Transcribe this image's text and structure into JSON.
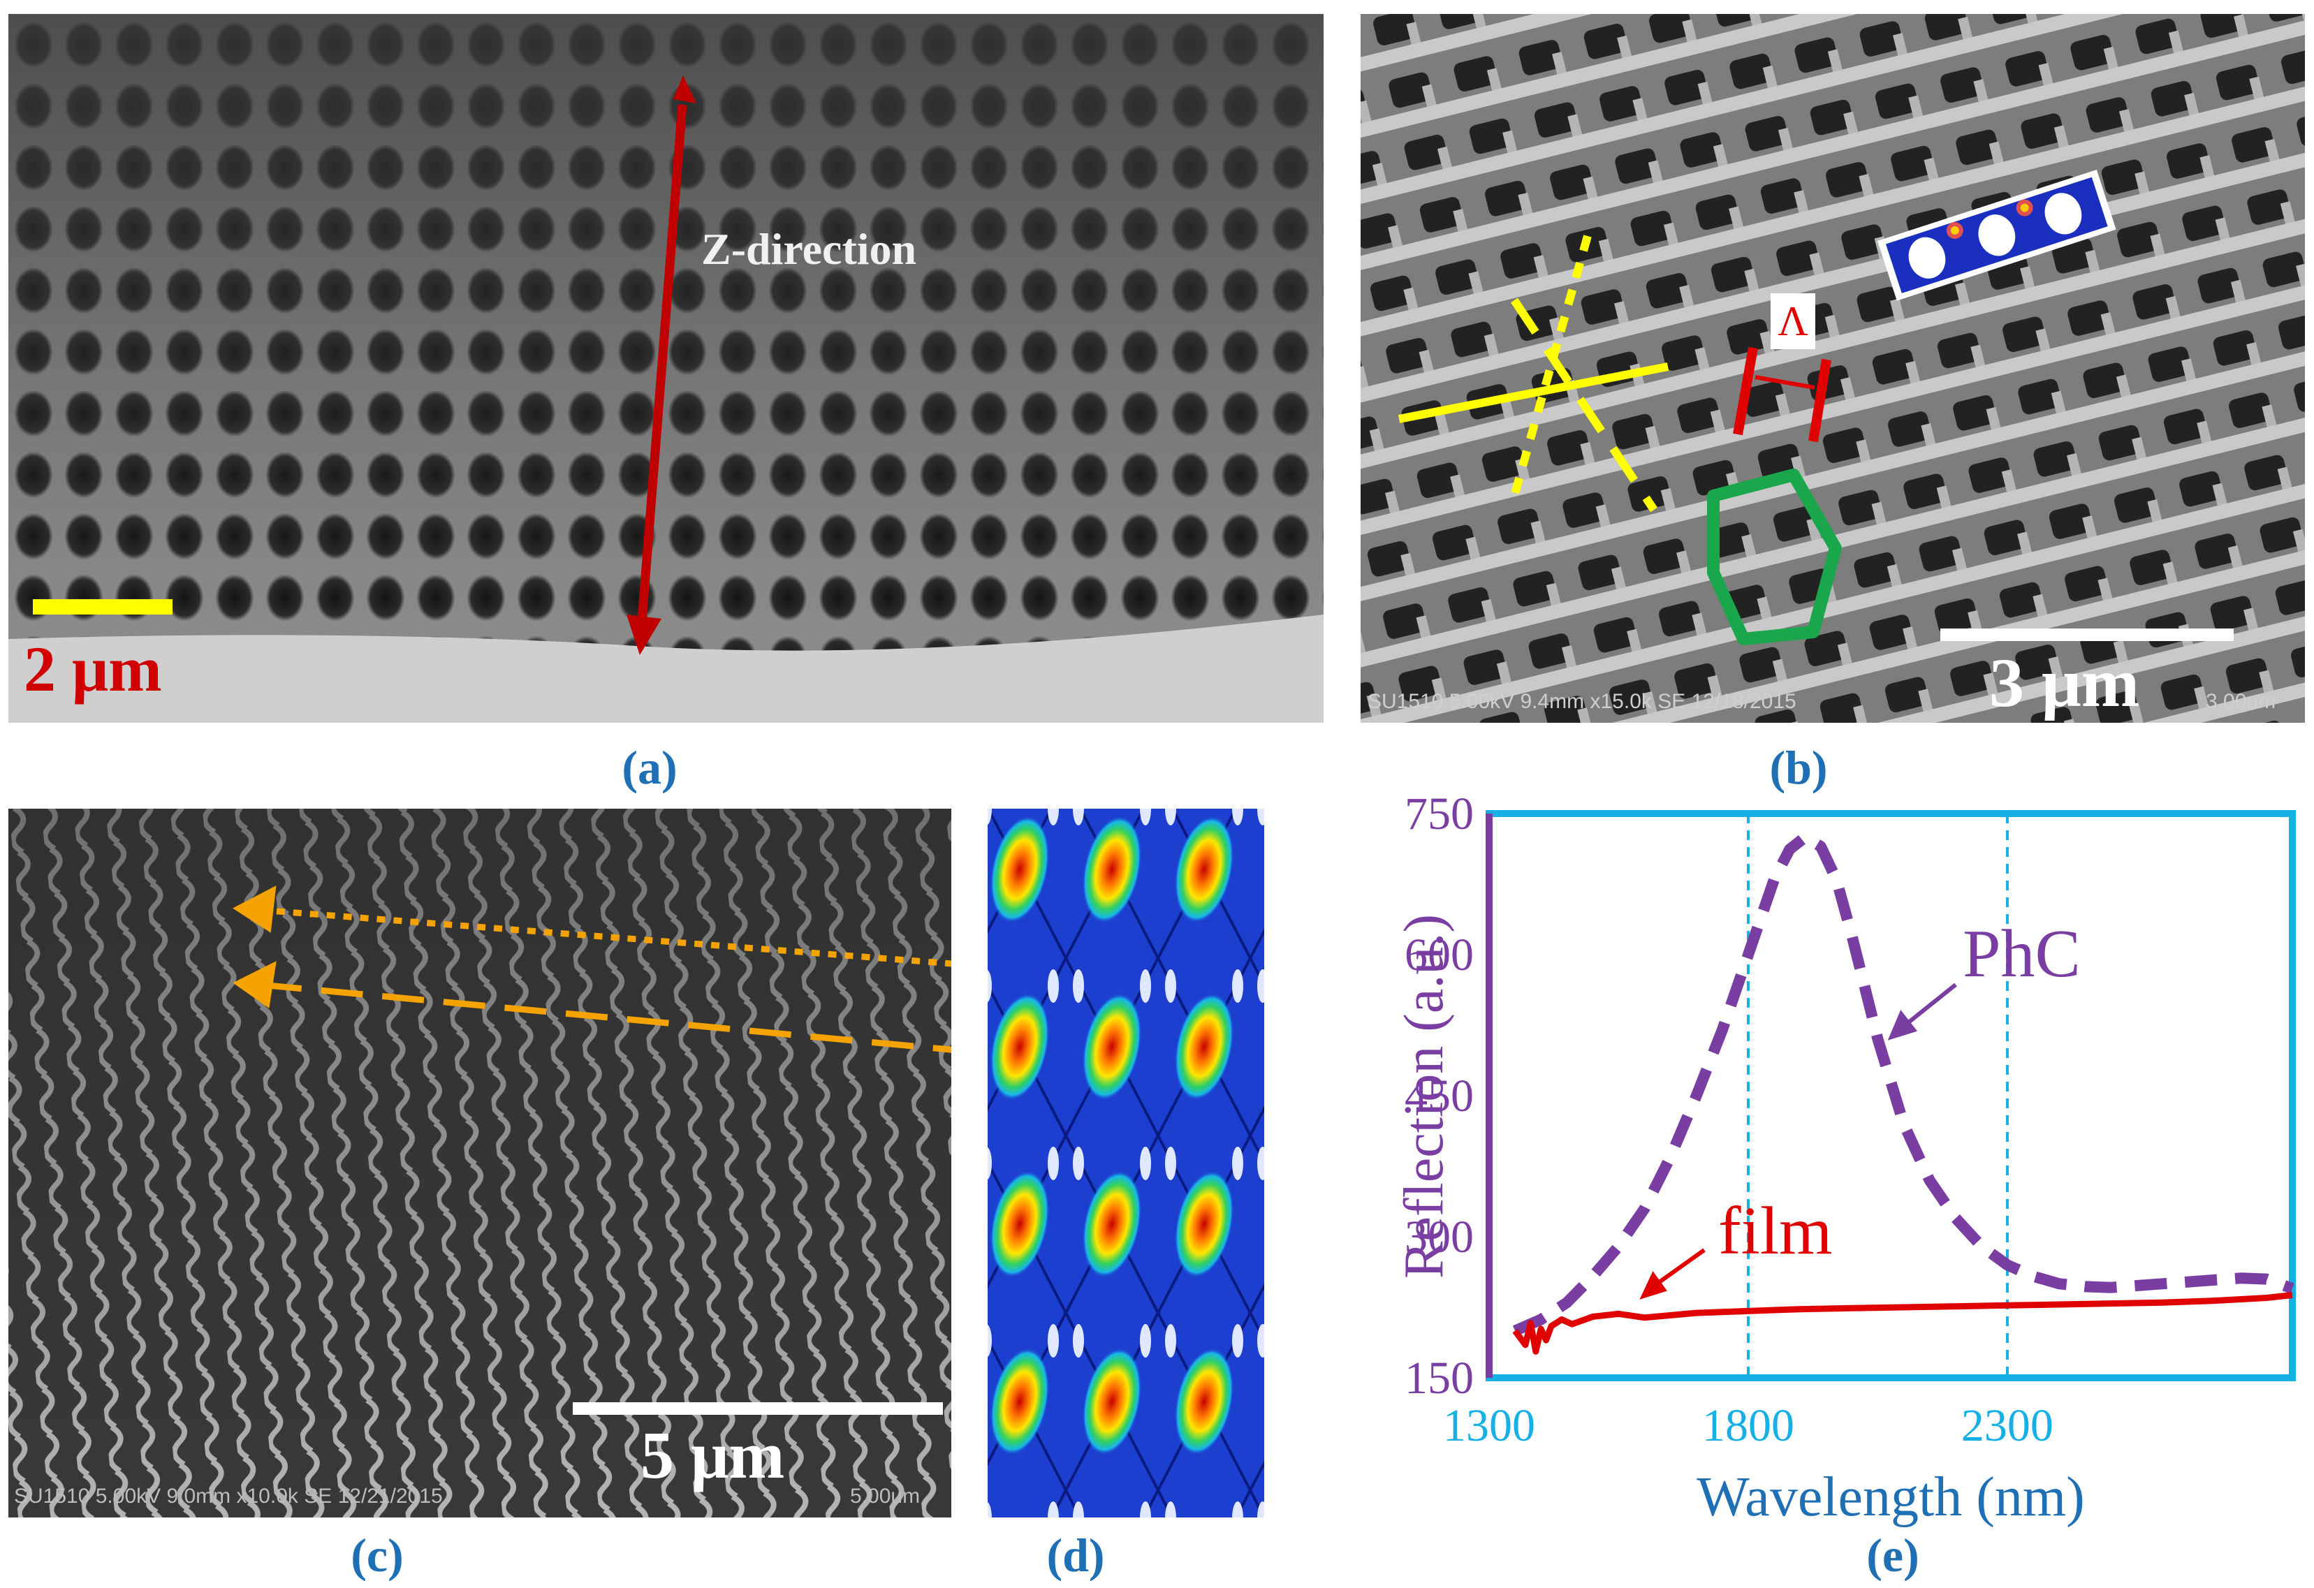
{
  "figure": {
    "panel_labels": {
      "a": "(a)",
      "b": "(b)",
      "c": "(c)",
      "d": "(d)",
      "e": "(e)"
    }
  },
  "panel_a": {
    "scale_label": "2 μm",
    "arrow_label": "Z-direction",
    "colors": {
      "arrow": "#c00000",
      "scale_bar": "#ffff00",
      "scale_text": "#d00000"
    }
  },
  "panel_b": {
    "scale_label": "3 μm",
    "lattice_label": "Λ",
    "sem_footer": "SU1510 5.00kV 9.4mm x15.0k SE  12/18/2015",
    "sem_scale": "3.00um",
    "colors": {
      "axes": "#ffff00",
      "lattice": "#e00000",
      "hexagon": "#1aa64a"
    }
  },
  "panel_c": {
    "scale_label": "5 μm",
    "sem_footer": "SU1510 5.00kV 9.0mm x10.0k SE  12/21/2015",
    "sem_scale": "5.00um",
    "colors": {
      "arrows": "#f5a300"
    }
  },
  "chart_data": {
    "type": "line",
    "xlabel": "Wavelength  (nm)",
    "ylabel": "Reflection  (a.u.)",
    "xlim": [
      1300,
      2850
    ],
    "ylim": [
      150,
      750
    ],
    "xticks": [
      1300,
      1800,
      2300
    ],
    "yticks": [
      150,
      300,
      450,
      600,
      750
    ],
    "vlines": [
      1800,
      2300
    ],
    "series": [
      {
        "name": "PhC",
        "color": "#7a3ea3",
        "style": "dashed",
        "x": [
          1350,
          1400,
          1450,
          1500,
          1550,
          1600,
          1650,
          1700,
          1750,
          1800,
          1850,
          1880,
          1910,
          1940,
          1970,
          2000,
          2050,
          2100,
          2150,
          2200,
          2250,
          2300,
          2350,
          2400,
          2450,
          2500,
          2550,
          2600,
          2650,
          2700,
          2750,
          2800,
          2850
        ],
        "values": [
          200,
          212,
          230,
          258,
          290,
          330,
          385,
          450,
          520,
          600,
          680,
          712,
          725,
          715,
          680,
          620,
          510,
          420,
          360,
          320,
          290,
          270,
          258,
          250,
          247,
          246,
          248,
          250,
          252,
          254,
          256,
          255,
          245
        ]
      },
      {
        "name": "film",
        "color": "#e00000",
        "style": "solid",
        "x": [
          1350,
          1370,
          1380,
          1390,
          1400,
          1410,
          1420,
          1440,
          1460,
          1500,
          1550,
          1600,
          1700,
          1800,
          1900,
          2000,
          2100,
          2200,
          2300,
          2400,
          2500,
          2600,
          2700,
          2800,
          2850
        ],
        "values": [
          200,
          185,
          208,
          178,
          202,
          190,
          205,
          212,
          207,
          215,
          218,
          214,
          219,
          221,
          223,
          224,
          225,
          226,
          227,
          228,
          229,
          230,
          232,
          235,
          238
        ]
      }
    ]
  }
}
